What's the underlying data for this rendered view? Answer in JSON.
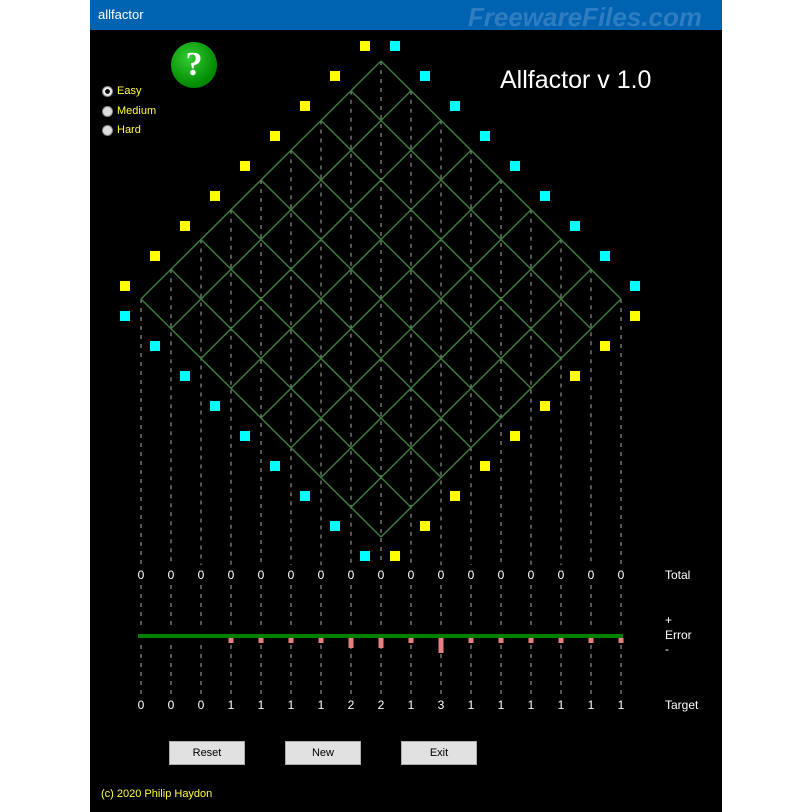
{
  "window": {
    "title": "allfactor",
    "watermark": "FreewareFiles.com"
  },
  "app_title": "Allfactor  v 1.0",
  "help_icon": "question-mark-icon",
  "difficulty": {
    "options": [
      "Easy",
      "Medium",
      "Hard"
    ],
    "selected": "Easy"
  },
  "labels": {
    "total": "Total",
    "error_plus": "+",
    "error": "Error",
    "error_minus": "-",
    "target": "Target"
  },
  "totals": [
    0,
    0,
    0,
    0,
    0,
    0,
    0,
    0,
    0,
    0,
    0,
    0,
    0,
    0,
    0,
    0,
    0
  ],
  "targets": [
    0,
    0,
    0,
    1,
    1,
    1,
    1,
    2,
    2,
    1,
    3,
    1,
    1,
    1,
    1,
    1,
    1
  ],
  "buttons": {
    "reset": "Reset",
    "new": "New",
    "exit": "Exit"
  },
  "copyright": "(c) 2020 Philip Haydon",
  "colors": {
    "yellow": "#ffff00",
    "cyan": "#00ffff",
    "grid": "#3f7a3f",
    "error_line": "#008000",
    "error_bar": "#e88080"
  }
}
